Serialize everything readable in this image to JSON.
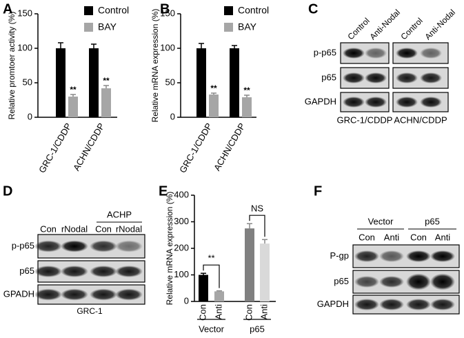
{
  "chart_data": [
    {
      "type": "bar",
      "panel": "A",
      "ylabel": "Relative promtoer activity  (%)",
      "categories": [
        "GRC-1/CDDP",
        "ACHN/CDDP"
      ],
      "series": [
        {
          "name": "Control",
          "color": "#000000",
          "values": [
            100,
            100
          ],
          "errors": [
            8,
            6
          ]
        },
        {
          "name": "BAY",
          "color": "#a6a6a6",
          "values": [
            30,
            42
          ],
          "errors": [
            3,
            4
          ],
          "significance": [
            "**",
            "**"
          ]
        }
      ],
      "ylim": [
        0,
        150
      ],
      "yticks": [
        0,
        50,
        100,
        150
      ]
    },
    {
      "type": "bar",
      "panel": "B",
      "ylabel": "Relative mRNA expression (%)",
      "categories": [
        "GRC-1/CDDP",
        "ACHN/CDDP"
      ],
      "series": [
        {
          "name": "Control",
          "color": "#000000",
          "values": [
            100,
            100
          ],
          "errors": [
            7,
            4
          ]
        },
        {
          "name": "BAY",
          "color": "#a6a6a6",
          "values": [
            33,
            29
          ],
          "errors": [
            2,
            3
          ],
          "significance": [
            "**",
            "**"
          ]
        }
      ],
      "ylim": [
        0,
        150
      ],
      "yticks": [
        0,
        50,
        100,
        150
      ]
    },
    {
      "type": "bar",
      "panel": "E",
      "ylabel": "Relative mRNA expression (%)",
      "categories": [
        "Con",
        "Anti",
        "Con",
        "Anti"
      ],
      "values": [
        100,
        38,
        275,
        218
      ],
      "errors": [
        6,
        2,
        18,
        15
      ],
      "colors": [
        "#000000",
        "#a6a6a6",
        "#808080",
        "#d9d9d9"
      ],
      "groups": [
        "Vector",
        "p65"
      ],
      "comparisons": [
        "**",
        "NS"
      ],
      "ylim": [
        0,
        400
      ],
      "yticks": [
        0,
        100,
        200,
        300,
        400
      ]
    }
  ],
  "blots": [
    {
      "panel": "C",
      "columns": [
        "Control",
        "Anti-Nodal",
        "Control",
        "Anti-Nodal"
      ],
      "rows": [
        "p-p65",
        "p65",
        "GAPDH"
      ],
      "cell_lines": [
        "GRC-1/CDDP",
        "ACHN/CDDP"
      ]
    },
    {
      "panel": "D",
      "columns": [
        "Con",
        "rNodal",
        "Con",
        "rNodal"
      ],
      "header": "ACHP",
      "rows": [
        "p-p65",
        "p65",
        "GPADH"
      ],
      "footer": "GRC-1"
    },
    {
      "panel": "F",
      "groups": [
        "Vector",
        "p65"
      ],
      "columns": [
        "Con",
        "Anti",
        "Con",
        "Anti"
      ],
      "rows": [
        "P-gp",
        "p65",
        "GAPDH"
      ]
    }
  ]
}
